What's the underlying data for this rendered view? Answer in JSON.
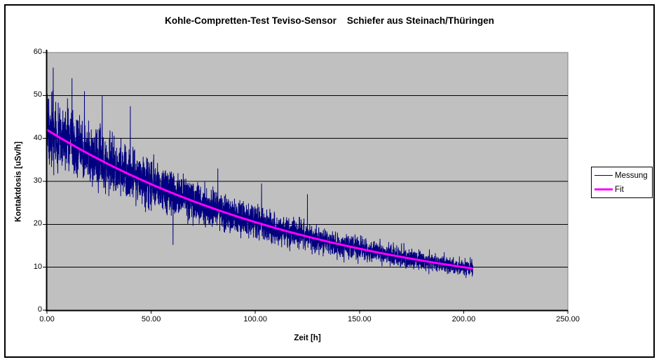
{
  "chart_data": {
    "type": "line",
    "title": "Kohle-Compretten-Test Teviso-Sensor    Schiefer aus Steinach/Thüringen",
    "xlabel": "Zeit [h]",
    "ylabel": "Kontaktdosis [uSv/h]",
    "xlim": [
      0,
      250
    ],
    "ylim": [
      0,
      60
    ],
    "x_tick_values": [
      0,
      50,
      100,
      150,
      200,
      250
    ],
    "x_tick_labels": [
      "0.00",
      "50.00",
      "100.00",
      "150.00",
      "200.00",
      "250.00"
    ],
    "y_tick_values": [
      0,
      10,
      20,
      30,
      40,
      50,
      60
    ],
    "y_tick_labels": [
      "0",
      "10",
      "20",
      "30",
      "40",
      "50",
      "60"
    ],
    "grid": "horizontal-major-gridlines",
    "plot_background_color": "#C0C0C0",
    "plot_border_color": "#808080",
    "gridline_color": "#000000",
    "legend": {
      "position": "right",
      "entries": [
        "Messung",
        "Fit"
      ]
    },
    "series": [
      {
        "name": "Messung",
        "type": "noisy-line",
        "color": "#000080",
        "line_width": 1,
        "x_range": [
          0,
          204.5
        ],
        "description": "dense noisy measurement band around the fit curve",
        "envelope_samples": [
          {
            "t": 0,
            "mean": 42.0,
            "band_halfwidth": 7.0
          },
          {
            "t": 20,
            "mean": 36.4,
            "band_halfwidth": 6.0
          },
          {
            "t": 40,
            "mean": 31.5,
            "band_halfwidth": 5.2
          },
          {
            "t": 60,
            "mean": 27.3,
            "band_halfwidth": 4.5
          },
          {
            "t": 80,
            "mean": 23.7,
            "band_halfwidth": 3.9
          },
          {
            "t": 100,
            "mean": 20.5,
            "band_halfwidth": 3.4
          },
          {
            "t": 120,
            "mean": 17.8,
            "band_halfwidth": 2.9
          },
          {
            "t": 140,
            "mean": 15.4,
            "band_halfwidth": 2.5
          },
          {
            "t": 160,
            "mean": 13.3,
            "band_halfwidth": 2.2
          },
          {
            "t": 180,
            "mean": 11.6,
            "band_halfwidth": 1.9
          },
          {
            "t": 204,
            "mean": 9.7,
            "band_halfwidth": 1.6
          }
        ],
        "outlier_spikes": [
          [
            3,
            56.5
          ],
          [
            12,
            54
          ],
          [
            18,
            51
          ],
          [
            26.5,
            50
          ],
          [
            40,
            47.5
          ],
          [
            60.5,
            15.2
          ],
          [
            82,
            33
          ],
          [
            103,
            29.5
          ],
          [
            125,
            27
          ]
        ]
      },
      {
        "name": "Fit",
        "type": "smooth-line",
        "color": "#FF00FF",
        "line_width": 3,
        "x_range": [
          0,
          204.5
        ],
        "fit_model": {
          "form": "a*exp(-t/tau)",
          "a": 42.0,
          "tau": 139.4
        },
        "points": [
          [
            0,
            42.0
          ],
          [
            10,
            39.1
          ],
          [
            20,
            36.4
          ],
          [
            30,
            33.9
          ],
          [
            40,
            31.5
          ],
          [
            50,
            29.4
          ],
          [
            60,
            27.3
          ],
          [
            70,
            25.4
          ],
          [
            80,
            23.7
          ],
          [
            90,
            22.0
          ],
          [
            100,
            20.5
          ],
          [
            110,
            19.1
          ],
          [
            120,
            17.8
          ],
          [
            130,
            16.5
          ],
          [
            140,
            15.4
          ],
          [
            150,
            14.3
          ],
          [
            160,
            13.3
          ],
          [
            170,
            12.4
          ],
          [
            180,
            11.6
          ],
          [
            190,
            10.8
          ],
          [
            200,
            10.0
          ],
          [
            204,
            9.7
          ]
        ]
      }
    ]
  },
  "legend": {
    "messung_label": "Messung",
    "fit_label": "Fit"
  }
}
